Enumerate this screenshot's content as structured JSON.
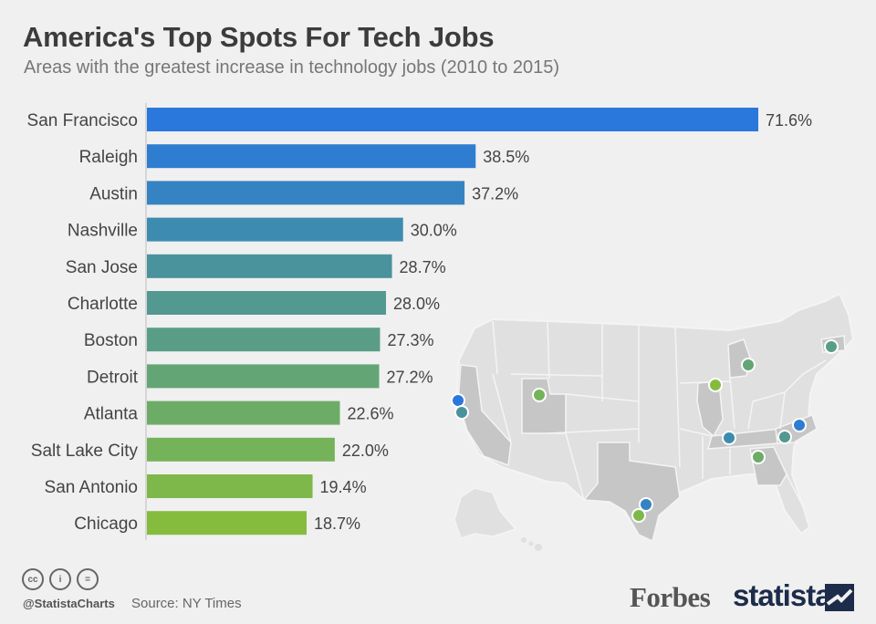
{
  "header": {
    "title": "America's Top Spots For Tech Jobs",
    "subtitle": "Areas with the greatest increase in technology jobs (2010 to 2015)"
  },
  "chart_data": {
    "type": "bar",
    "orientation": "horizontal",
    "categories": [
      "San Francisco",
      "Raleigh",
      "Austin",
      "Nashville",
      "San Jose",
      "Charlotte",
      "Boston",
      "Detroit",
      "Atlanta",
      "Salt Lake City",
      "San Antonio",
      "Chicago"
    ],
    "values": [
      71.6,
      38.5,
      37.2,
      30.0,
      28.7,
      28.0,
      27.3,
      27.2,
      22.6,
      22.0,
      19.4,
      18.7
    ],
    "value_labels": [
      "71.6%",
      "38.5%",
      "37.2%",
      "30.0%",
      "28.7%",
      "28.0%",
      "27.3%",
      "27.2%",
      "22.6%",
      "22.0%",
      "19.4%",
      "18.7%"
    ],
    "colors": [
      "#2a78db",
      "#2f7dd0",
      "#3583c2",
      "#3e8bb0",
      "#4a929c",
      "#539891",
      "#5a9d86",
      "#64a575",
      "#6dac67",
      "#75b35a",
      "#7eb84a",
      "#85bc3e"
    ],
    "grid": false,
    "legend": "none"
  },
  "map": {
    "state_color": "#dcdcdc",
    "highlight_color": "#c5c5c5",
    "border_color": "#f4f4f4"
  },
  "footer": {
    "icons": [
      "cc-icon",
      "attribution-icon",
      "no-derivatives-icon"
    ],
    "icon_text": [
      "cc",
      "i",
      "="
    ],
    "handle": "@StatistaCharts",
    "source": "Source: NY Times",
    "brand_forbes": "Forbes",
    "brand_statista": "statista"
  }
}
